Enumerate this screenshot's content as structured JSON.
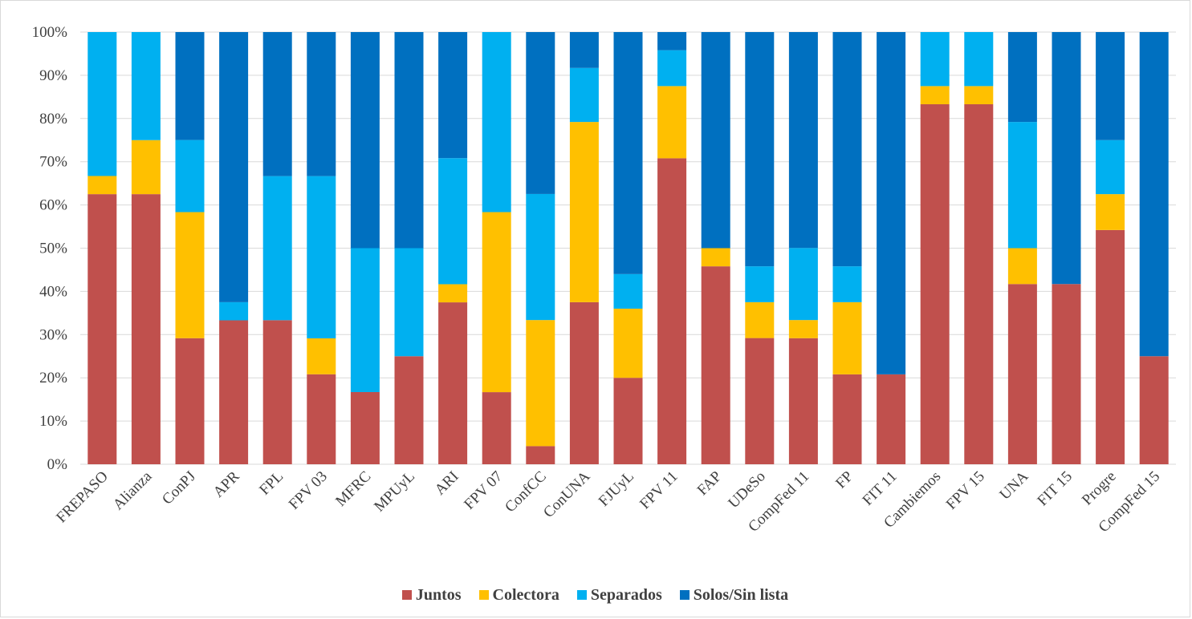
{
  "chart_data": {
    "type": "bar",
    "stacked": true,
    "percent": true,
    "categories": [
      "FREPASO",
      "Alianza",
      "ConPJ",
      "APR",
      "FPL",
      "FPV 03",
      "MFRC",
      "MPUyL",
      "ARI",
      "FPV 07",
      "ConfCC",
      "ConUNA",
      "FJUyL",
      "FPV 11",
      "FAP",
      "UDeSo",
      "CompFed 11",
      "FP",
      "FIT 11",
      "Cambiemos",
      "FPV 15",
      "UNA",
      "FIT 15",
      "Progre",
      "CompFed 15"
    ],
    "series": [
      {
        "name": "Juntos",
        "color": "#c0504d",
        "values": [
          62.5,
          62.5,
          29.2,
          33.3,
          33.3,
          20.8,
          16.7,
          25.0,
          37.5,
          16.7,
          4.2,
          37.5,
          20.0,
          70.8,
          45.8,
          29.2,
          29.2,
          20.8,
          20.8,
          83.3,
          83.3,
          41.7,
          41.7,
          54.2,
          25.0
        ]
      },
      {
        "name": "Colectora",
        "color": "#ffc000",
        "values": [
          4.2,
          12.5,
          29.2,
          0,
          0,
          8.3,
          0,
          0,
          4.2,
          41.7,
          29.2,
          41.7,
          16.0,
          16.7,
          4.2,
          8.3,
          4.2,
          16.7,
          0,
          4.2,
          4.2,
          8.3,
          0,
          8.3,
          0
        ]
      },
      {
        "name": "Separados",
        "color": "#00b0f0",
        "values": [
          33.3,
          25.0,
          16.7,
          4.2,
          33.3,
          37.5,
          33.3,
          25.0,
          29.2,
          41.7,
          29.2,
          12.5,
          8.0,
          8.3,
          0,
          8.3,
          16.7,
          8.3,
          0,
          12.5,
          12.5,
          29.2,
          0,
          12.5,
          0
        ]
      },
      {
        "name": "Solos/Sin lista",
        "color": "#0070c0",
        "values": [
          0,
          0,
          25.0,
          62.5,
          33.3,
          33.3,
          50.0,
          50.0,
          29.2,
          0,
          37.5,
          8.3,
          56.0,
          4.2,
          50.0,
          54.2,
          50.0,
          54.2,
          79.2,
          0,
          0,
          20.8,
          58.3,
          25.0,
          75.0
        ]
      }
    ],
    "ylim": [
      0,
      100
    ],
    "yticks": [
      "0%",
      "10%",
      "20%",
      "30%",
      "40%",
      "50%",
      "60%",
      "70%",
      "80%",
      "90%",
      "100%"
    ],
    "grid": true,
    "legend_position": "bottom"
  }
}
